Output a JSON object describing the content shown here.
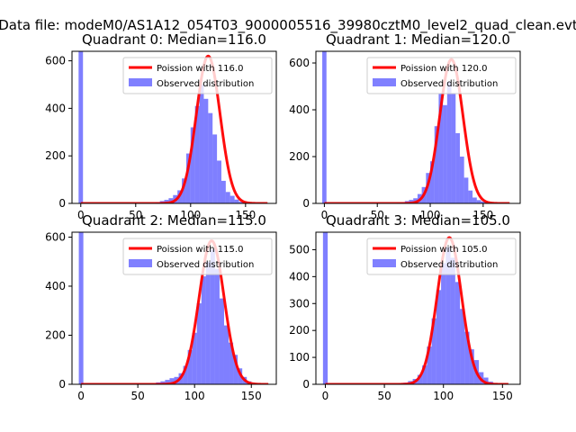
{
  "figure": {
    "suptitle": "Data file: modeM0/AS1A12_054T03_9000005516_39980cztM0_level2_quad_clean.evt"
  },
  "chart_data": [
    {
      "type": "bar",
      "title": "Quadrant 0: Median=116.0",
      "xlabel": "",
      "ylabel": "",
      "xlim": [
        -8,
        178
      ],
      "ylim": [
        0,
        640
      ],
      "xticks": [
        0,
        50,
        100,
        150
      ],
      "yticks": [
        0,
        200,
        400,
        600
      ],
      "median": 116.0,
      "legend": {
        "placement": "upper right",
        "entries": [
          {
            "label": "Poission with 116.0",
            "color": "#ff0000",
            "kind": "line"
          },
          {
            "label": "Observed distribution",
            "color": "#8080ff",
            "kind": "patch"
          }
        ]
      },
      "series": [
        {
          "name": "Observed distribution",
          "kind": "histogram",
          "bin_edges": [
            -2,
            2,
            68,
            72,
            76,
            80,
            84,
            88,
            92,
            96,
            100,
            104,
            108,
            112,
            116,
            120,
            124,
            128,
            132,
            136,
            140,
            144,
            148,
            152,
            156
          ],
          "counts": [
            640,
            0,
            5,
            10,
            15,
            22,
            35,
            55,
            105,
            210,
            320,
            410,
            500,
            440,
            380,
            290,
            180,
            95,
            48,
            32,
            16,
            7,
            3,
            0
          ]
        },
        {
          "name": "Poission with 116.0",
          "kind": "curve",
          "peak": 620,
          "mu": 116,
          "sigma": 10.8,
          "x_range": [
            0,
            170
          ]
        }
      ]
    },
    {
      "type": "bar",
      "title": "Quadrant 1: Median=120.0",
      "xlabel": "",
      "ylabel": "",
      "xlim": [
        -8,
        185
      ],
      "ylim": [
        0,
        650
      ],
      "xticks": [
        0,
        50,
        100,
        150
      ],
      "yticks": [
        0,
        200,
        400,
        600
      ],
      "median": 120.0,
      "legend": {
        "placement": "upper right",
        "entries": [
          {
            "label": "Poission with 120.0",
            "color": "#ff0000",
            "kind": "line"
          },
          {
            "label": "Observed distribution",
            "color": "#8080ff",
            "kind": "patch"
          }
        ]
      },
      "series": [
        {
          "name": "Observed distribution",
          "kind": "histogram",
          "bin_edges": [
            -2,
            2,
            68,
            72,
            76,
            80,
            84,
            88,
            92,
            96,
            100,
            104,
            108,
            112,
            116,
            120,
            124,
            128,
            132,
            136,
            140,
            144,
            148,
            152,
            156,
            160,
            164
          ],
          "counts": [
            650,
            0,
            3,
            5,
            10,
            15,
            22,
            40,
            70,
            130,
            180,
            330,
            470,
            420,
            520,
            470,
            300,
            200,
            110,
            55,
            25,
            14,
            8,
            3,
            2,
            1
          ]
        },
        {
          "name": "Poission with 120.0",
          "kind": "curve",
          "peak": 615,
          "mu": 120,
          "sigma": 11.0,
          "x_range": [
            0,
            175
          ]
        }
      ]
    },
    {
      "type": "bar",
      "title": "Quadrant 2: Median=115.0",
      "xlabel": "",
      "ylabel": "",
      "xlim": [
        -8,
        172
      ],
      "ylim": [
        0,
        620
      ],
      "xticks": [
        0,
        50,
        100,
        150
      ],
      "yticks": [
        0,
        200,
        400,
        600
      ],
      "median": 115.0,
      "legend": {
        "placement": "upper right",
        "entries": [
          {
            "label": "Poission with 115.0",
            "color": "#ff0000",
            "kind": "line"
          },
          {
            "label": "Observed distribution",
            "color": "#8080ff",
            "kind": "patch"
          }
        ]
      },
      "series": [
        {
          "name": "Observed distribution",
          "kind": "histogram",
          "bin_edges": [
            -2,
            2,
            66,
            70,
            74,
            78,
            82,
            86,
            90,
            94,
            98,
            102,
            106,
            110,
            114,
            118,
            122,
            126,
            130,
            134,
            138,
            142,
            146,
            150,
            154,
            158
          ],
          "counts": [
            620,
            0,
            8,
            12,
            18,
            25,
            30,
            45,
            75,
            140,
            210,
            330,
            440,
            500,
            550,
            470,
            350,
            240,
            170,
            120,
            65,
            30,
            12,
            4,
            2
          ]
        },
        {
          "name": "Poission with 115.0",
          "kind": "curve",
          "peak": 585,
          "mu": 115,
          "sigma": 11.0,
          "x_range": [
            0,
            165
          ]
        }
      ]
    },
    {
      "type": "bar",
      "title": "Quadrant 3: Median=105.0",
      "xlabel": "",
      "ylabel": "",
      "xlim": [
        -8,
        165
      ],
      "ylim": [
        0,
        565
      ],
      "xticks": [
        0,
        50,
        100,
        150
      ],
      "yticks": [
        0,
        100,
        200,
        300,
        400,
        500
      ],
      "median": 105.0,
      "legend": {
        "placement": "upper right",
        "entries": [
          {
            "label": "Poission with 105.0",
            "color": "#ff0000",
            "kind": "line"
          },
          {
            "label": "Observed distribution",
            "color": "#8080ff",
            "kind": "patch"
          }
        ]
      },
      "series": [
        {
          "name": "Observed distribution",
          "kind": "histogram",
          "bin_edges": [
            -2,
            2,
            58,
            62,
            66,
            70,
            74,
            78,
            82,
            86,
            90,
            94,
            98,
            102,
            106,
            110,
            114,
            118,
            122,
            126,
            130,
            134,
            138,
            142,
            146
          ],
          "counts": [
            565,
            0,
            2,
            4,
            6,
            12,
            20,
            35,
            70,
            140,
            245,
            350,
            450,
            510,
            470,
            380,
            280,
            195,
            130,
            90,
            45,
            25,
            10,
            3
          ]
        },
        {
          "name": "Poission with 105.0",
          "kind": "curve",
          "peak": 545,
          "mu": 105,
          "sigma": 10.3,
          "x_range": [
            0,
            155
          ]
        }
      ]
    }
  ]
}
